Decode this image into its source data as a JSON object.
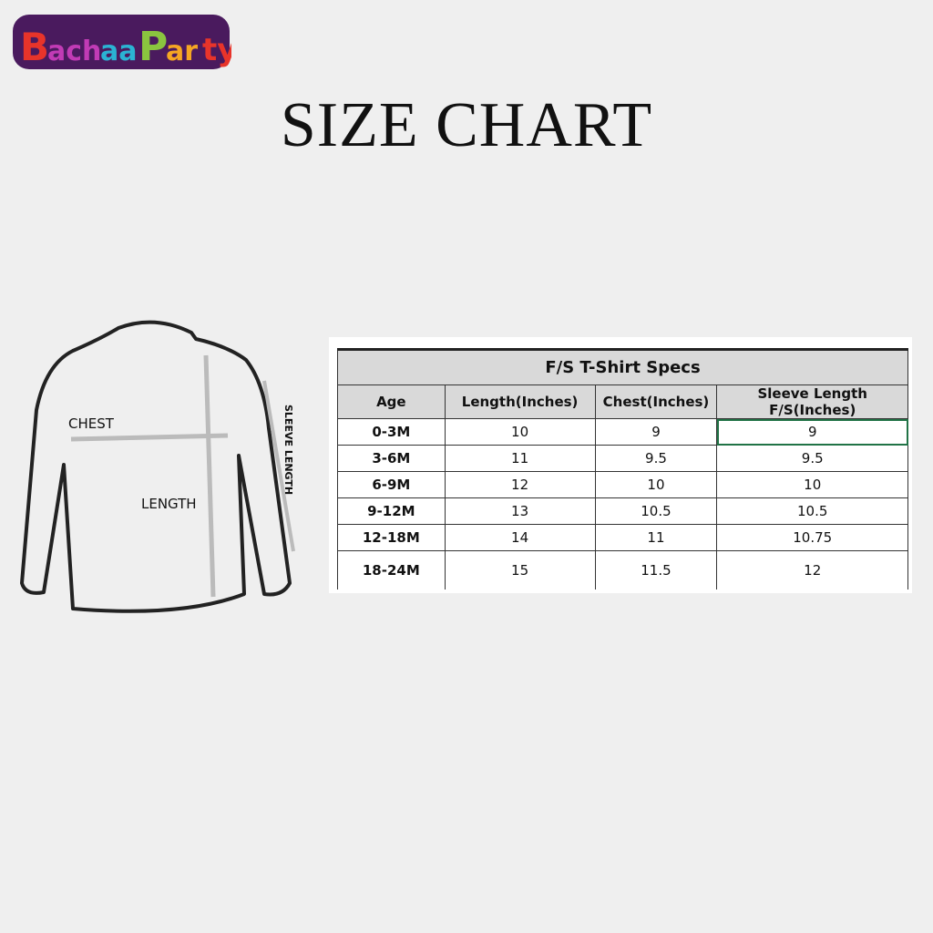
{
  "brand": {
    "logo_text": "BachaaParty",
    "colors": [
      "#e8342a",
      "#c13bb5",
      "#8ac43f",
      "#2bb3d3",
      "#f5a623",
      "#4a1a5e"
    ]
  },
  "page_title": "SIZE CHART",
  "diagram": {
    "labels": {
      "chest": "CHEST",
      "length": "LENGTH",
      "sleeve": "SLEEVE LENGTH"
    }
  },
  "table": {
    "caption": "F/S T-Shirt Specs",
    "headers": [
      "Age",
      "Length(Inches)",
      "Chest(Inches)",
      "Sleeve Length F/S(Inches)"
    ],
    "rows": [
      [
        "0-3M",
        "10",
        "9",
        "9"
      ],
      [
        "3-6M",
        "11",
        "9.5",
        "9.5"
      ],
      [
        "6-9M",
        "12",
        "10",
        "10"
      ],
      [
        "9-12M",
        "13",
        "10.5",
        "10.5"
      ],
      [
        "12-18M",
        "14",
        "11",
        "10.75"
      ],
      [
        "18-24M",
        "15",
        "11.5",
        "12"
      ]
    ],
    "selection_color": "#217346"
  }
}
